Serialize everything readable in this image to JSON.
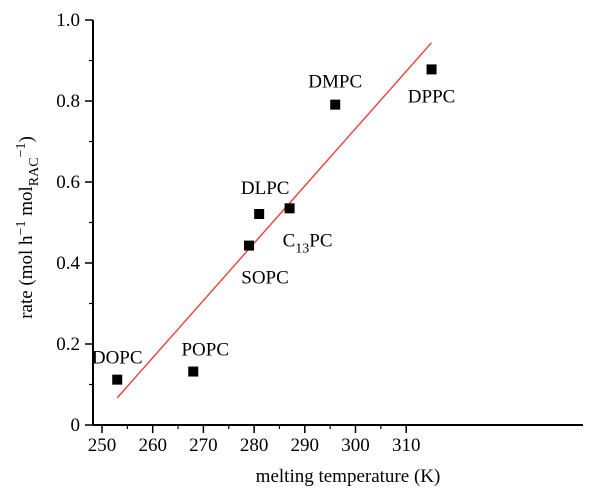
{
  "chart_data": {
    "type": "scatter",
    "xlabel": "melting temperature (K)",
    "ylabel": {
      "main": "rate (mol h",
      "exp1": "−1",
      "mid": " mol",
      "sub": "RAC",
      "exp2": "−1",
      "end": ")"
    },
    "xlim": [
      247,
      318
    ],
    "ylim": [
      0,
      1.0
    ],
    "xticks": [
      250,
      260,
      270,
      280,
      290,
      300,
      310
    ],
    "xtick_labels": [
      "250",
      "260",
      "270",
      "280",
      "290",
      "300",
      "310"
    ],
    "yticks": [
      0,
      0.2,
      0.4,
      0.6,
      0.8,
      1.0
    ],
    "ytick_labels": [
      "0",
      "0.2",
      "0.4",
      "0.6",
      "0.8",
      "1.0"
    ],
    "grid": false,
    "series": [
      {
        "points": [
          {
            "label": "DOPC",
            "x": 253,
            "y": 0.112
          },
          {
            "label": "POPC",
            "x": 268,
            "y": 0.132
          },
          {
            "label": "SOPC",
            "x": 279,
            "y": 0.443
          },
          {
            "label": "DLPC",
            "x": 281,
            "y": 0.521
          },
          {
            "label": "C13PC",
            "x": 287,
            "y": 0.535
          },
          {
            "label": "DMPC",
            "x": 296,
            "y": 0.791
          },
          {
            "label": "DPPC",
            "x": 315,
            "y": 0.878
          }
        ]
      }
    ],
    "fit_line": {
      "x": [
        253,
        315
      ],
      "y": [
        0.067,
        0.944
      ],
      "color": "#e8413a"
    },
    "marker_color": "#000000"
  }
}
